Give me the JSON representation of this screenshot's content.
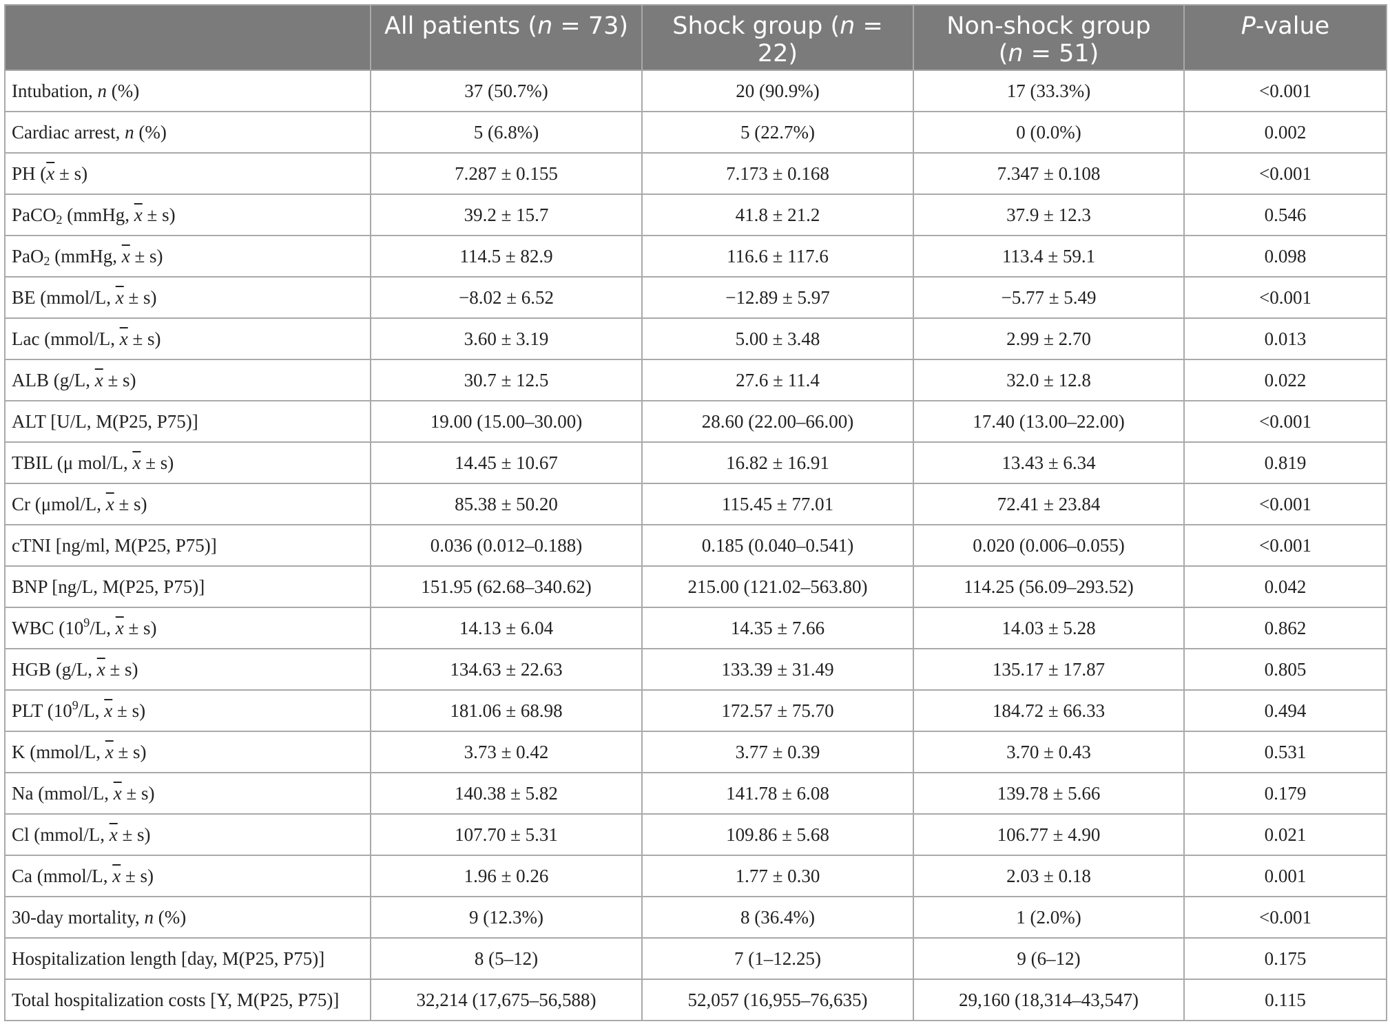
{
  "header": {
    "col1": {
      "pre": "All patients (",
      "var": "n",
      "post": " = 73)"
    },
    "col2": {
      "pre": "Shock group (",
      "var": "n",
      "post": " = 22)"
    },
    "col3": {
      "line1": "Non-shock group",
      "pre": "(",
      "var": "n",
      "post": " = 51)"
    },
    "col4": {
      "var": "P",
      "post": "-value"
    }
  },
  "rows": [
    {
      "label": {
        "pre": "Intubation, ",
        "var": "n",
        "post": " (%)"
      },
      "all": "37 (50.7%)",
      "shock": "20 (90.9%)",
      "nonshock": "17 (33.3%)",
      "p": "<0.001"
    },
    {
      "label": {
        "pre": "Cardiac arrest, ",
        "var": "n",
        "post": " (%)"
      },
      "all": "5 (6.8%)",
      "shock": "5 (22.7%)",
      "nonshock": "0 (0.0%)",
      "p": "0.002"
    },
    {
      "label": {
        "pre": "PH (",
        "xbar": "x",
        "post": " ± s)"
      },
      "all": "7.287 ± 0.155",
      "shock": "7.173 ± 0.168",
      "nonshock": "7.347 ± 0.108",
      "p": "<0.001"
    },
    {
      "label": {
        "pre": "PaCO",
        "sub": "2",
        "mid": " (mmHg, ",
        "xbar": "x",
        "post": " ± s)"
      },
      "all": "39.2 ± 15.7",
      "shock": "41.8 ± 21.2",
      "nonshock": "37.9 ± 12.3",
      "p": "0.546"
    },
    {
      "label": {
        "pre": "PaO",
        "sub": "2",
        "mid": " (mmHg, ",
        "xbar": "x",
        "post": " ± s)"
      },
      "all": "114.5 ± 82.9",
      "shock": "116.6 ± 117.6",
      "nonshock": "113.4 ± 59.1",
      "p": "0.098"
    },
    {
      "label": {
        "pre": "BE (mmol/L, ",
        "xbar": "x",
        "post": " ± s)"
      },
      "all": "−8.02 ± 6.52",
      "shock": "−12.89 ± 5.97",
      "nonshock": "−5.77 ± 5.49",
      "p": "<0.001"
    },
    {
      "label": {
        "pre": "Lac (mmol/L, ",
        "xbar": "x",
        "post": " ± s)"
      },
      "all": "3.60 ± 3.19",
      "shock": "5.00 ± 3.48",
      "nonshock": "2.99 ± 2.70",
      "p": "0.013"
    },
    {
      "label": {
        "pre": "ALB (g/L, ",
        "xbar": "x",
        "post": " ± s)"
      },
      "all": "30.7 ± 12.5",
      "shock": "27.6 ± 11.4",
      "nonshock": "32.0 ± 12.8",
      "p": "0.022"
    },
    {
      "label": {
        "pre": "ALT [U/L, M(P25, P75)]"
      },
      "all": "19.00 (15.00–30.00)",
      "shock": "28.60 (22.00–66.00)",
      "nonshock": "17.40 (13.00–22.00)",
      "p": "<0.001"
    },
    {
      "label": {
        "pre": "TBIL (μ mol/L, ",
        "xbar": "x",
        "post": " ± s)"
      },
      "all": "14.45 ± 10.67",
      "shock": "16.82 ± 16.91",
      "nonshock": "13.43 ± 6.34",
      "p": "0.819"
    },
    {
      "label": {
        "pre": "Cr (μmol/L, ",
        "xbar": "x",
        "post": " ± s)"
      },
      "all": "85.38 ± 50.20",
      "shock": "115.45 ± 77.01",
      "nonshock": "72.41 ± 23.84",
      "p": "<0.001"
    },
    {
      "label": {
        "pre": "cTNI [ng/ml, M(P25, P75)]"
      },
      "all": "0.036 (0.012–0.188)",
      "shock": "0.185 (0.040–0.541)",
      "nonshock": "0.020 (0.006–0.055)",
      "p": "<0.001"
    },
    {
      "label": {
        "pre": "BNP [ng/L, M(P25, P75)]"
      },
      "all": "151.95 (62.68–340.62)",
      "shock": "215.00 (121.02–563.80)",
      "nonshock": "114.25 (56.09–293.52)",
      "p": "0.042"
    },
    {
      "label": {
        "pre": "WBC (10",
        "sup": "9",
        "mid": "/L, ",
        "xbar": "x",
        "post": " ± s)"
      },
      "all": "14.13 ± 6.04",
      "shock": "14.35 ± 7.66",
      "nonshock": "14.03 ± 5.28",
      "p": "0.862"
    },
    {
      "label": {
        "pre": "HGB (g/L, ",
        "xbar": "x",
        "post": " ± s)"
      },
      "all": "134.63 ± 22.63",
      "shock": "133.39 ± 31.49",
      "nonshock": "135.17 ± 17.87",
      "p": "0.805"
    },
    {
      "label": {
        "pre": "PLT (10",
        "sup": "9",
        "mid": "/L, ",
        "xbar": "x",
        "post": " ± s)"
      },
      "all": "181.06 ± 68.98",
      "shock": "172.57 ± 75.70",
      "nonshock": "184.72 ± 66.33",
      "p": "0.494"
    },
    {
      "label": {
        "pre": "K (mmol/L, ",
        "xbar": "x",
        "post": " ± s)"
      },
      "all": "3.73 ± 0.42",
      "shock": "3.77 ± 0.39",
      "nonshock": "3.70 ± 0.43",
      "p": "0.531"
    },
    {
      "label": {
        "pre": "Na (mmol/L, ",
        "xbar": "x",
        "post": " ± s)"
      },
      "all": "140.38 ± 5.82",
      "shock": "141.78 ± 6.08",
      "nonshock": "139.78 ± 5.66",
      "p": "0.179"
    },
    {
      "label": {
        "pre": "Cl (mmol/L, ",
        "xbar": "x",
        "post": " ± s)"
      },
      "all": "107.70 ± 5.31",
      "shock": "109.86 ± 5.68",
      "nonshock": "106.77 ± 4.90",
      "p": "0.021"
    },
    {
      "label": {
        "pre": "Ca (mmol/L, ",
        "xbar": "x",
        "post": " ± s)"
      },
      "all": "1.96 ± 0.26",
      "shock": "1.77 ± 0.30",
      "nonshock": "2.03 ± 0.18",
      "p": "0.001"
    },
    {
      "label": {
        "pre": "30-day mortality, ",
        "var": "n",
        "post": " (%)"
      },
      "all": "9 (12.3%)",
      "shock": "8 (36.4%)",
      "nonshock": "1 (2.0%)",
      "p": "<0.001"
    },
    {
      "label": {
        "pre": "Hospitalization length [day, M(P25, P75)]"
      },
      "all": "8 (5–12)",
      "shock": "7 (1–12.25)",
      "nonshock": "9 (6–12)",
      "p": "0.175"
    },
    {
      "label": {
        "pre": "Total hospitalization costs [Y, M(P25, P75)]"
      },
      "all": "32,214 (17,675–56,588)",
      "shock": "52,057 (16,955–76,635)",
      "nonshock": "29,160 (18,314–43,547)",
      "p": "0.115"
    }
  ]
}
